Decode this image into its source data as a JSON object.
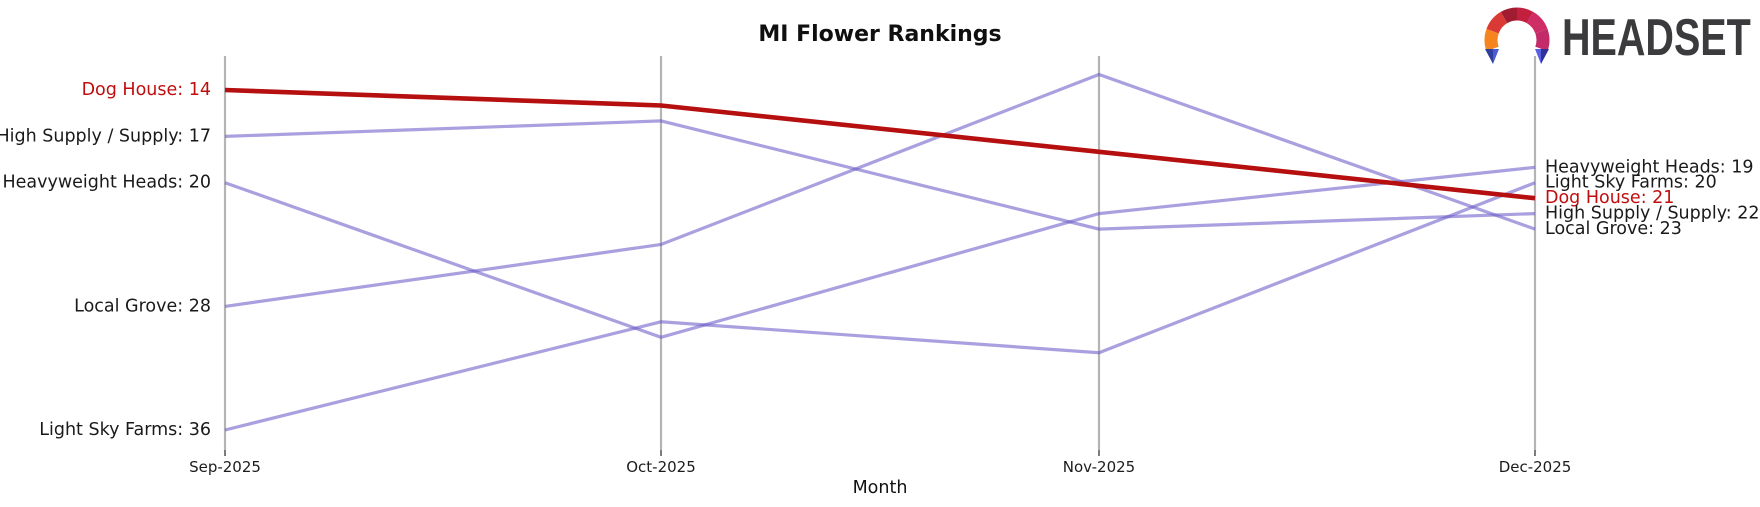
{
  "header": {
    "title": "MI Flower Rankings"
  },
  "logo": {
    "wordmark": "HEADSET",
    "icon": "headset-arch-icon",
    "text_color": "#3b3b3d",
    "icon_colors": [
      "#f6851f",
      "#d93a35",
      "#a11c30",
      "#c3203f",
      "#cf2d66",
      "#c22a68",
      "#2e3f9e",
      "#4d5cd6",
      "#5b60e2",
      "#30319b"
    ]
  },
  "chart_data": {
    "type": "line",
    "variant": "bump-rank-chart",
    "title": "MI Flower Rankings",
    "xlabel": "Month",
    "ylabel": "",
    "x_tick_labels": [
      "Sep-2025",
      "Oct-2025",
      "Nov-2025",
      "Dec-2025"
    ],
    "y_axis": {
      "inverted": true,
      "rank_range": [
        13,
        36
      ],
      "tick_labels_shown": false
    },
    "grid": "vertical-gridline-per-month",
    "legend": "inline-start-end-labels",
    "categories": [
      "Sep-2025",
      "Oct-2025",
      "Nov-2025",
      "Dec-2025"
    ],
    "series": [
      {
        "name": "Dog House",
        "values": [
          14,
          15,
          18,
          21
        ],
        "highlighted": true,
        "color": "#b50f0f",
        "label_color": "#c00e0e",
        "start_label": "Dog House: 14",
        "end_label": "Dog House: 21"
      },
      {
        "name": "High Supply / Supply",
        "values": [
          17,
          16,
          23,
          22
        ],
        "highlighted": false,
        "color": "#a69ddc",
        "label_color": "#1a1a1a",
        "start_label": "High Supply / Supply: 17",
        "end_label": "High Supply / Supply: 22"
      },
      {
        "name": "Heavyweight Heads",
        "values": [
          20,
          30,
          22,
          19
        ],
        "highlighted": false,
        "color": "#a69ddc",
        "label_color": "#1a1a1a",
        "start_label": "Heavyweight Heads: 20",
        "end_label": "Heavyweight Heads: 19"
      },
      {
        "name": "Local Grove",
        "values": [
          28,
          24,
          13,
          23
        ],
        "highlighted": false,
        "color": "#a69ddc",
        "label_color": "#1a1a1a",
        "start_label": "Local Grove: 28",
        "end_label": "Local Grove: 23"
      },
      {
        "name": "Light Sky Farms",
        "values": [
          36,
          29,
          31,
          20
        ],
        "highlighted": false,
        "color": "#a69ddc",
        "label_color": "#1a1a1a",
        "start_label": "Light Sky Farms: 36",
        "end_label": "Light Sky Farms: 20"
      }
    ],
    "colors": {
      "highlight_line": "#b50f0f",
      "default_line": "#6a5cc8",
      "default_line_opacity": 0.58,
      "gridline": "#b4b4b4",
      "tick": "#444444",
      "tick_label": "#1c1c1c"
    }
  }
}
